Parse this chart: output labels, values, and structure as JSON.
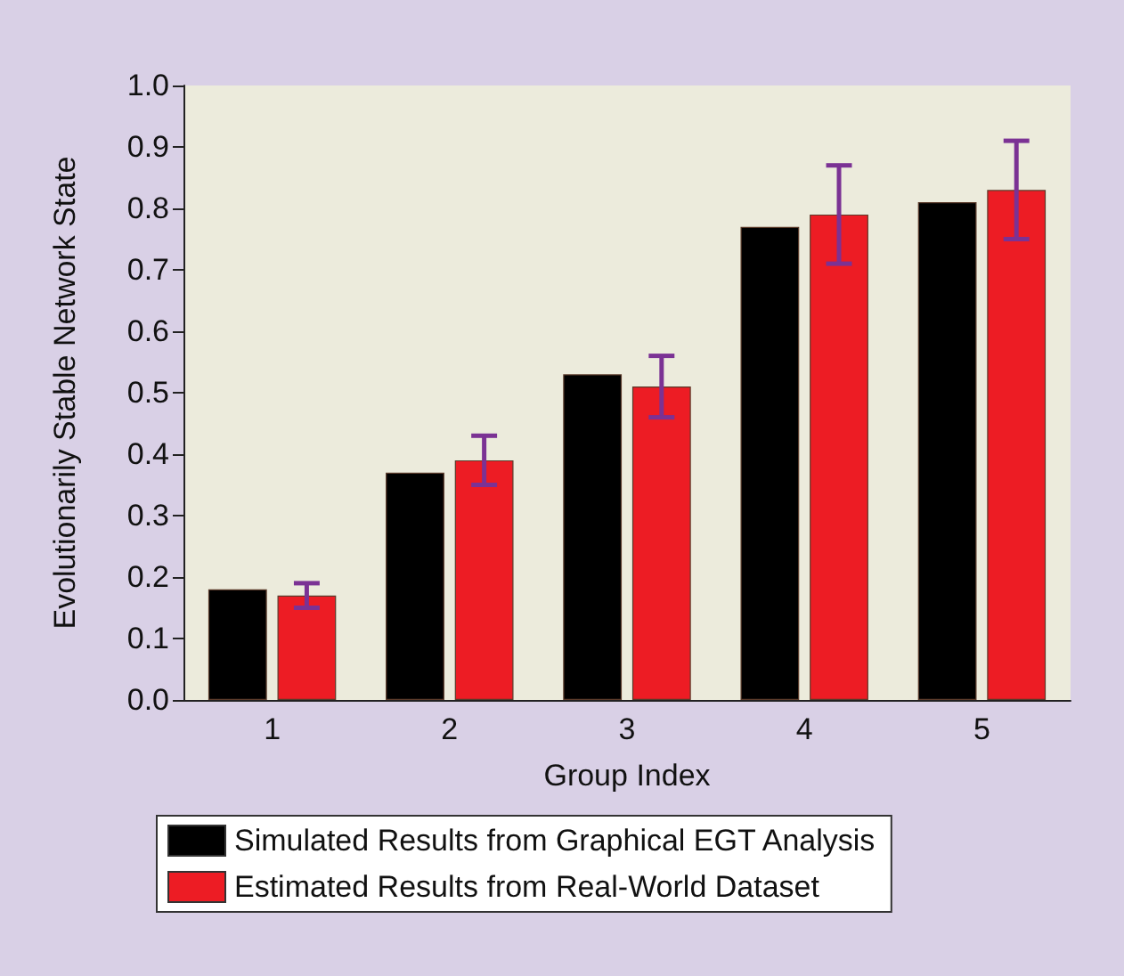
{
  "chart_data": {
    "type": "bar",
    "xlabel": "Group Index",
    "ylabel": "Evolutionarily Stable Network State",
    "categories": [
      "1",
      "2",
      "3",
      "4",
      "5"
    ],
    "series": [
      {
        "name": "Simulated Results from Graphical EGT Analysis",
        "color": "#000000",
        "values": [
          0.18,
          0.37,
          0.53,
          0.77,
          0.81
        ]
      },
      {
        "name": "Estimated Results from Real-World Dataset",
        "color": "#ed1c24",
        "values": [
          0.17,
          0.39,
          0.51,
          0.79,
          0.83
        ],
        "errors": [
          0.02,
          0.04,
          0.05,
          0.08,
          0.08
        ]
      }
    ],
    "ylim": [
      0,
      1
    ],
    "yticks": [
      {
        "value": 0,
        "label": "0.0"
      },
      0.1,
      0.2,
      0.3,
      0.4,
      0.5,
      0.6,
      0.7,
      0.8,
      0.9,
      {
        "value": 1,
        "label": "1.0"
      }
    ],
    "grid": false,
    "legend": "bottom"
  }
}
